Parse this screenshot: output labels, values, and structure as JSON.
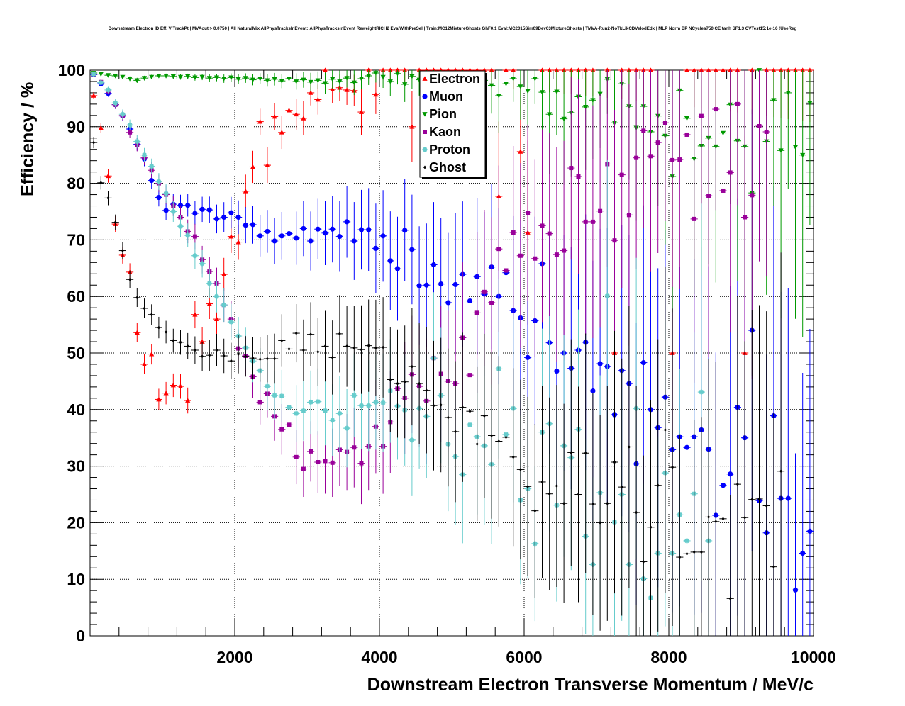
{
  "chart_data": {
    "type": "scatter",
    "title": "Downstream Electron ID Eff. V TrackPt | MVAout > 0.0750 | All NaturalMix AllPhysTracksInEvent::AllPhysTracksInEvent ReweightRICH2 EvalWithPreSel | Train:MC12MixtureGhosts GhF0.1 Eval:MC2015Sim09Dev03MixtureGhosts | TMVA-Run2-NoTkLikCDVelodEdx | MLP Norm BP NCycles750 CE tanh SF1.3 CVTest15:1e-16 !UseReg",
    "xlabel": "Downstream Electron Transverse Momentum / MeV/c",
    "ylabel": "Efficiency / %",
    "xlim": [
      0,
      10000
    ],
    "ylim": [
      0,
      100
    ],
    "bin_width": 100,
    "xticks": [
      "2000",
      "4000",
      "6000",
      "8000",
      "10000"
    ],
    "yticks": [
      "0",
      "10",
      "20",
      "30",
      "40",
      "50",
      "60",
      "70",
      "80",
      "90",
      "100"
    ],
    "grid": true,
    "legend_position": "top-center",
    "series": [
      {
        "name": "Electron",
        "color": "#ff0000",
        "marker": "triangle-up",
        "x": [
          50,
          150,
          250,
          350,
          450,
          550,
          650,
          750,
          850,
          950,
          1050,
          1150,
          1250,
          1350,
          1450,
          1550,
          1650,
          1750,
          1850,
          1950,
          2050,
          2150,
          2250,
          2350,
          2450,
          2550,
          2650,
          2750,
          2850,
          2950,
          3050,
          3150,
          3250,
          3350,
          3450,
          3550,
          3650,
          3750,
          3850,
          3950,
          4050,
          4150,
          4250,
          4350,
          4450,
          4550,
          4650,
          4750,
          4850,
          4950,
          5050,
          5150,
          5250,
          5350,
          5450,
          5550,
          5650,
          5750,
          5850,
          5950,
          6050,
          6250,
          6350,
          6450,
          6550,
          6650,
          6750,
          6850,
          6950,
          7150,
          7250,
          7350,
          7450,
          7550,
          7650,
          7750,
          8050,
          8250,
          8350,
          8450,
          8550,
          8650,
          8750,
          8850,
          8950,
          9050,
          9150,
          9350,
          9450,
          9550,
          9650,
          9750,
          9850,
          9950
        ],
        "y": [
          95.5,
          89.8,
          81.3,
          72.8,
          67.3,
          64.3,
          53.6,
          48,
          49.8,
          41.8,
          42.9,
          44.3,
          44.1,
          41.6,
          56.8,
          52,
          58.7,
          56,
          63.9,
          70.6,
          69.6,
          78.6,
          82.9,
          90.9,
          83.2,
          91.8,
          89,
          92.9,
          92.2,
          91.5,
          96,
          94.8,
          100,
          96.6,
          96.9,
          96.5,
          96.4,
          92.6,
          100,
          95.7,
          100,
          100,
          100,
          100,
          90,
          100,
          100,
          100,
          100,
          100,
          100,
          100,
          100,
          100,
          100,
          100,
          77.7,
          100,
          100,
          85.6,
          71.3,
          100,
          100,
          100,
          100,
          100,
          100,
          100,
          100,
          100,
          50,
          100,
          100,
          100,
          100,
          100,
          50,
          100,
          100,
          100,
          100,
          100,
          100,
          100,
          100,
          50,
          100,
          100,
          100,
          100,
          100,
          100,
          100,
          100
        ]
      },
      {
        "name": "Muon",
        "color": "#0000ff",
        "marker": "circle",
        "y": [
          99.2,
          97.6,
          95.9,
          93.9,
          91.9,
          89.6,
          86.9,
          84.3,
          80.5,
          77.5,
          75.2,
          76.3,
          76.1,
          76.1,
          74.7,
          75.4,
          75.3,
          73.7,
          74,
          74.8,
          74,
          72.6,
          72.7,
          70.7,
          71.5,
          69.8,
          70.7,
          71.1,
          70.3,
          72,
          69.8,
          71.9,
          71.2,
          71.9,
          70.6,
          73.2,
          69.8,
          71.8,
          71.8,
          68.5,
          70.7,
          66.3,
          64.9,
          71.7,
          68.3,
          61.9,
          62,
          65.6,
          62.2,
          58.9,
          62.1,
          63.9,
          59.2,
          63.5,
          60.4,
          65.2,
          60,
          64.2,
          57.5,
          56.2,
          49.2,
          55.7,
          65.8,
          51.8,
          46.8,
          50,
          47.3,
          50.5,
          51.9,
          43.3,
          48.1,
          47.6,
          39.1,
          46.9,
          44.6,
          30.4,
          48.3,
          40,
          36.8,
          42.2,
          32.9,
          35.2,
          33.3,
          35.2,
          36.4,
          33,
          21.3,
          26.6,
          28.6,
          40.4,
          35,
          54,
          23.9,
          18.2,
          38.9,
          24.3,
          24.3,
          8.1,
          14.6,
          18.5
        ]
      },
      {
        "name": "Pion",
        "color": "#009900",
        "marker": "triangle-down",
        "y": [
          99.5,
          99.3,
          99.1,
          99,
          98.8,
          98.5,
          98.2,
          98.6,
          98.8,
          99,
          99,
          98.9,
          98.8,
          98.9,
          98.7,
          98.8,
          98.6,
          98.7,
          98.5,
          98.7,
          98.4,
          98.6,
          98.3,
          98.5,
          98.2,
          98.4,
          98.1,
          98.5,
          98,
          98.3,
          97.9,
          98.2,
          97.7,
          98.4,
          98,
          98.6,
          97.8,
          98.5,
          99,
          99.5,
          98.8,
          98,
          99.4,
          97.5,
          98.9,
          98.3,
          97.6,
          98.9,
          97.2,
          98,
          96.5,
          98.5,
          97.8,
          96.8,
          98.2,
          97.3,
          95.5,
          97.6,
          98.5,
          97.1,
          96.3,
          98.5,
          96.1,
          92.2,
          96.2,
          91.4,
          92.5,
          95.3,
          93.5,
          94.7,
          95.8,
          98.4,
          90.7,
          97.6,
          93.6,
          89.8,
          93.6,
          89.1,
          91.9,
          88.4,
          81.2,
          96.4,
          91.5,
          84.3,
          86.6,
          88,
          86.5,
          88.9,
          93.9,
          87.5,
          86.5,
          78.3,
          100,
          87.4,
          94.7,
          85.8,
          96,
          86.4,
          85,
          94.2
        ]
      },
      {
        "name": "Kaon",
        "color": "#990099",
        "marker": "square",
        "y": [
          99.3,
          97.9,
          96.3,
          93.9,
          92,
          89,
          86.8,
          84.5,
          82.3,
          80,
          78,
          76,
          74,
          71.5,
          70.6,
          66.5,
          64.4,
          62.3,
          58.5,
          56,
          50.8,
          49.5,
          45.8,
          41.3,
          42.8,
          38.8,
          36.5,
          37.3,
          31.6,
          29.5,
          32.6,
          30.7,
          30.9,
          30.6,
          32.9,
          32.5,
          33.3,
          30.5,
          33.5,
          37,
          33.5,
          37.8,
          43.7,
          42,
          46.2,
          44.1,
          41.5,
          49.1,
          46.3,
          45,
          44.6,
          52.7,
          46.1,
          57.1,
          60.8,
          58.9,
          68.4,
          64.6,
          71.3,
          67.2,
          74.8,
          66.7,
          72.5,
          71.1,
          67.4,
          68.1,
          82.7,
          81.2,
          73.2,
          73.2,
          75.1,
          83.4,
          69.9,
          81.5,
          74.4,
          84.5,
          89.3,
          84.8,
          87.2,
          90.7,
          84.1,
          84.2,
          88.6,
          73.7,
          91.9,
          77.8,
          93.1,
          78.7,
          81.9,
          94,
          74,
          77.9,
          90.1,
          89.1
        ]
      },
      {
        "name": "Proton",
        "color": "#66cccc",
        "marker": "cross",
        "y": [
          99.3,
          97.8,
          96.5,
          94.2,
          92.2,
          90.3,
          87.4,
          85,
          83,
          80.3,
          78.2,
          75,
          72.4,
          70.8,
          67.2,
          65.8,
          62.3,
          60,
          58.5,
          55.5,
          53,
          50.9,
          48.6,
          46.9,
          44.1,
          42.5,
          42.4,
          40.4,
          39.3,
          39.8,
          41.3,
          41.4,
          39.8,
          38.1,
          39.3,
          36.7,
          42.5,
          40.7,
          40.7,
          41.3,
          41.2,
          43.3,
          40.6,
          39.9,
          34.6,
          40.2,
          38.8,
          49.1,
          42.5,
          33.9,
          31.7,
          28.5,
          37.3,
          35.2,
          33.6,
          30.3,
          47.2,
          35.6,
          40.2,
          24,
          26,
          16.3,
          36,
          37.5,
          23.1,
          33.6,
          31.5,
          36.5,
          17.6,
          12.6,
          25.3,
          60.1,
          20.1,
          25,
          12.6,
          40.2,
          10.1,
          6.7,
          14.6,
          28.8,
          14.6,
          21.4,
          16.8,
          25.1,
          43.1,
          16.8
        ]
      },
      {
        "name": "Ghost",
        "color": "#000000",
        "marker": "diamond",
        "y": [
          87.2,
          80.1,
          77.4,
          73.1,
          68.1,
          63,
          59.8,
          57.9,
          56.8,
          54.5,
          53.7,
          52.2,
          51.9,
          51.2,
          50.5,
          49.4,
          49.6,
          50.5,
          49.5,
          48.6,
          49.8,
          49.4,
          49.1,
          48.9,
          49,
          49,
          52.2,
          50.7,
          53.5,
          50.5,
          53.3,
          50.2,
          51.2,
          49.2,
          53.4,
          51.2,
          50.9,
          50.6,
          51.3,
          50.9,
          51,
          45.3,
          44.6,
          44.9,
          47.6,
          44.6,
          43.4,
          40.7,
          40.8,
          38.6,
          36.1,
          40.4,
          39.7,
          33.9,
          38.9,
          35.4,
          34.4,
          35.1,
          31.6,
          29.4,
          26.4,
          22.1,
          27.2,
          25.1,
          26.5,
          23.4,
          32.4,
          25,
          32.3,
          23.3,
          20,
          23.4,
          30.7,
          26.3,
          33.4,
          21.8,
          13.1,
          19.2,
          26.6,
          36.4,
          29.8,
          13.9,
          14.5,
          14.8,
          14.8,
          21,
          20.2,
          20.7,
          6.6,
          26.8,
          20.9,
          24.1,
          24.2,
          23,
          12.2,
          29.1
        ]
      }
    ]
  }
}
